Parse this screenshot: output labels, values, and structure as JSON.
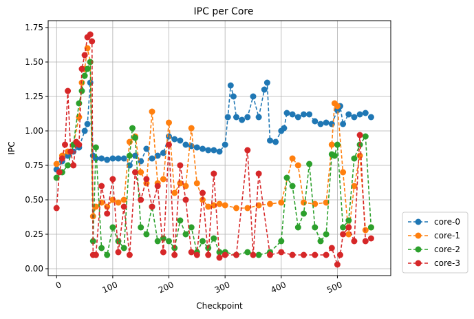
{
  "chart_data": {
    "type": "line",
    "title": "IPC per Core",
    "xlabel": "Checkpoint",
    "ylabel": "IPC",
    "xlim": [
      -15,
      595
    ],
    "ylim": [
      -0.05,
      1.8
    ],
    "xticks": [
      0,
      100,
      200,
      300,
      400,
      500
    ],
    "yticks": [
      0.0,
      0.25,
      0.5,
      0.75,
      1.0,
      1.25,
      1.5,
      1.75
    ],
    "grid": true,
    "line_style": "dashed",
    "marker": "circle",
    "legend_position": "outside-bottom-right",
    "series": [
      {
        "name": "core-0",
        "color": "#1f77b4",
        "x": [
          0,
          10,
          20,
          30,
          40,
          50,
          55,
          60,
          65,
          70,
          80,
          90,
          100,
          110,
          120,
          130,
          140,
          150,
          160,
          170,
          180,
          190,
          200,
          210,
          220,
          230,
          240,
          250,
          260,
          270,
          280,
          290,
          300,
          305,
          310,
          315,
          320,
          330,
          340,
          350,
          360,
          370,
          375,
          380,
          390,
          400,
          405,
          410,
          420,
          430,
          440,
          450,
          460,
          470,
          480,
          490,
          500,
          505,
          510,
          520,
          530,
          540,
          550,
          560
        ],
        "values": [
          0.72,
          0.78,
          0.82,
          0.85,
          0.88,
          1.0,
          1.05,
          1.35,
          0.82,
          0.8,
          0.8,
          0.79,
          0.8,
          0.8,
          0.8,
          0.75,
          0.82,
          0.78,
          0.87,
          0.8,
          0.82,
          0.84,
          0.96,
          0.94,
          0.93,
          0.9,
          0.89,
          0.88,
          0.87,
          0.86,
          0.86,
          0.85,
          0.9,
          1.1,
          1.33,
          1.25,
          1.1,
          1.08,
          1.1,
          1.25,
          1.1,
          1.3,
          1.35,
          0.93,
          0.92,
          1.0,
          1.02,
          1.13,
          1.12,
          1.1,
          1.12,
          1.12,
          1.07,
          1.05,
          1.06,
          1.05,
          1.15,
          1.18,
          1.05,
          1.12,
          1.1,
          1.12,
          1.13,
          1.1
        ]
      },
      {
        "name": "core-1",
        "color": "#ff7f0e",
        "x": [
          0,
          10,
          20,
          30,
          40,
          45,
          50,
          55,
          60,
          65,
          70,
          80,
          90,
          100,
          110,
          120,
          130,
          140,
          150,
          160,
          170,
          180,
          190,
          200,
          210,
          220,
          230,
          240,
          250,
          260,
          270,
          280,
          290,
          300,
          320,
          340,
          360,
          380,
          400,
          420,
          430,
          440,
          460,
          480,
          490,
          495,
          500,
          510,
          520,
          530,
          540,
          550,
          560
        ],
        "values": [
          0.76,
          0.82,
          0.85,
          0.9,
          1.1,
          1.35,
          1.45,
          1.6,
          1.5,
          0.38,
          0.45,
          0.48,
          0.45,
          0.5,
          0.48,
          0.5,
          0.92,
          0.96,
          0.7,
          0.62,
          1.14,
          0.62,
          0.65,
          1.06,
          0.55,
          0.62,
          0.6,
          1.02,
          0.62,
          0.5,
          0.45,
          0.46,
          0.47,
          0.46,
          0.44,
          0.44,
          0.46,
          0.47,
          0.48,
          0.8,
          0.75,
          0.48,
          0.47,
          0.48,
          0.9,
          1.2,
          1.18,
          0.7,
          0.25,
          0.6,
          0.82,
          0.28,
          0.3
        ]
      },
      {
        "name": "core-2",
        "color": "#2ca02c",
        "x": [
          0,
          10,
          20,
          30,
          40,
          45,
          50,
          55,
          60,
          65,
          70,
          80,
          90,
          100,
          110,
          120,
          130,
          135,
          140,
          150,
          160,
          170,
          180,
          190,
          200,
          210,
          220,
          230,
          240,
          250,
          260,
          270,
          280,
          290,
          300,
          320,
          340,
          360,
          380,
          400,
          410,
          420,
          430,
          440,
          450,
          460,
          470,
          480,
          490,
          495,
          500,
          510,
          520,
          530,
          540,
          550,
          560
        ],
        "values": [
          0.66,
          0.7,
          0.75,
          0.9,
          1.2,
          1.29,
          1.4,
          1.45,
          1.5,
          0.2,
          0.88,
          0.15,
          0.1,
          0.3,
          0.2,
          0.15,
          0.82,
          1.02,
          0.95,
          0.3,
          0.25,
          0.45,
          0.2,
          0.22,
          0.2,
          0.15,
          0.35,
          0.25,
          0.3,
          0.12,
          0.2,
          0.15,
          0.22,
          0.12,
          0.12,
          0.1,
          0.12,
          0.1,
          0.12,
          0.2,
          0.66,
          0.6,
          0.3,
          0.4,
          0.76,
          0.3,
          0.2,
          0.25,
          0.83,
          0.82,
          0.9,
          0.3,
          0.35,
          0.8,
          0.9,
          0.96,
          0.3
        ]
      },
      {
        "name": "core-3",
        "color": "#d62728",
        "x": [
          0,
          5,
          10,
          15,
          20,
          25,
          30,
          35,
          40,
          45,
          50,
          55,
          60,
          63,
          65,
          70,
          80,
          90,
          100,
          110,
          120,
          130,
          140,
          150,
          160,
          170,
          180,
          190,
          200,
          210,
          220,
          230,
          240,
          250,
          260,
          270,
          280,
          290,
          300,
          320,
          340,
          350,
          360,
          380,
          400,
          420,
          440,
          460,
          480,
          490,
          500,
          505,
          510,
          520,
          530,
          540,
          550,
          560
        ],
        "values": [
          0.44,
          0.7,
          0.8,
          0.9,
          1.29,
          0.85,
          0.75,
          0.92,
          0.9,
          1.45,
          1.55,
          1.68,
          1.7,
          1.65,
          0.1,
          0.1,
          0.6,
          0.4,
          0.65,
          0.12,
          0.45,
          0.1,
          0.7,
          0.5,
          0.65,
          0.45,
          0.6,
          0.12,
          0.9,
          0.1,
          0.75,
          0.5,
          0.12,
          0.1,
          0.55,
          0.1,
          0.69,
          0.08,
          0.1,
          0.1,
          0.86,
          0.1,
          0.69,
          0.1,
          0.12,
          0.1,
          0.1,
          0.1,
          0.1,
          0.15,
          0.03,
          0.1,
          0.25,
          0.3,
          0.2,
          0.97,
          0.2,
          0.22
        ]
      }
    ]
  }
}
